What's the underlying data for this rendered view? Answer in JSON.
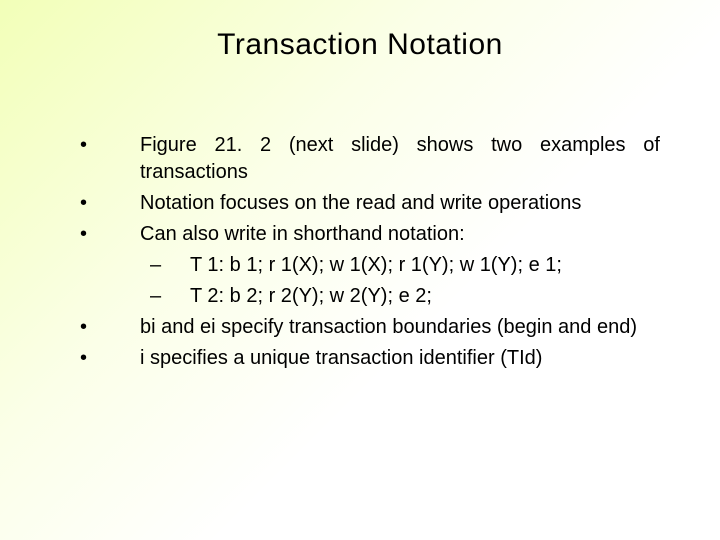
{
  "slide": {
    "title": "Transaction Notation",
    "title_fontsize": 30,
    "body_fontsize": 20,
    "background_gradient": [
      "#f2ffb8",
      "#fbffe8",
      "#ffffff"
    ],
    "text_color": "#000000",
    "bullets": [
      {
        "text": "Figure 21. 2 (next slide) shows two examples of transactions",
        "justify": true,
        "sub": []
      },
      {
        "text": "Notation focuses on the read and write operations",
        "justify": false,
        "sub": []
      },
      {
        "text": "Can also write in shorthand notation:",
        "justify": false,
        "sub": [
          "T 1: b 1; r 1(X); w 1(X); r 1(Y); w 1(Y); e 1;",
          "T 2: b 2; r 2(Y); w 2(Y); e 2;"
        ]
      },
      {
        "text": "bi and ei specify transaction boundaries (begin and end)",
        "justify": false,
        "sub": []
      },
      {
        "text": "i specifies a unique transaction identifier (TId)",
        "justify": false,
        "sub": []
      }
    ],
    "bullet_marker": "•",
    "sub_marker": "–"
  }
}
